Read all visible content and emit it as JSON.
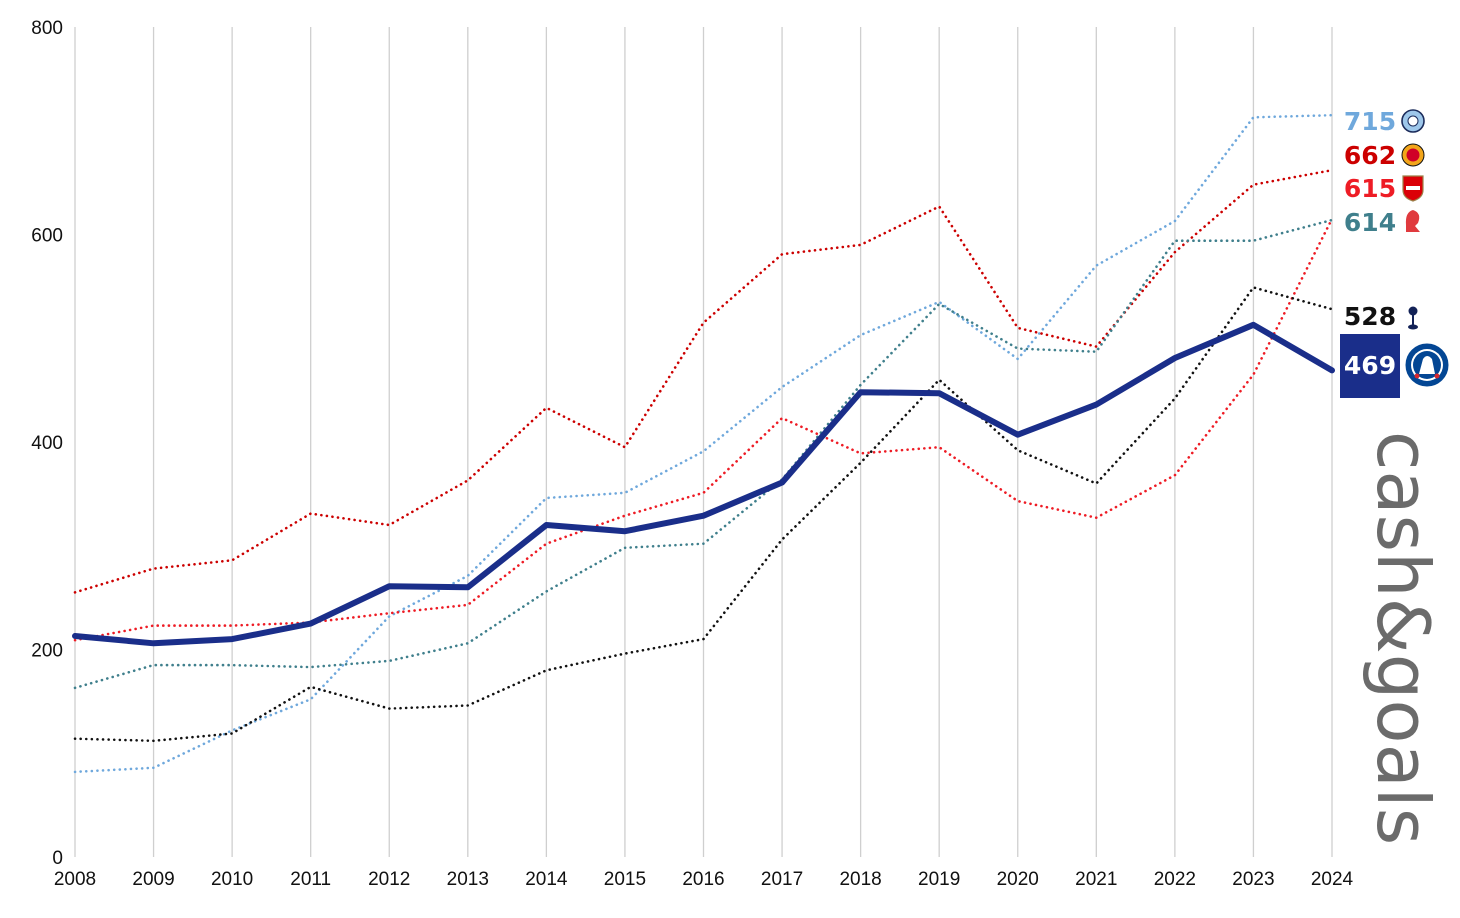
{
  "chart_data": {
    "type": "line",
    "x": [
      2008,
      2009,
      2010,
      2011,
      2012,
      2013,
      2014,
      2015,
      2016,
      2017,
      2018,
      2019,
      2020,
      2021,
      2022,
      2023,
      2024
    ],
    "x_labels": [
      "2008",
      "2009",
      "2010",
      "2011",
      "2012",
      "2013",
      "2014",
      "2015",
      "2016",
      "2017",
      "2018",
      "2019",
      "2020",
      "2021",
      "2022",
      "2023",
      "2024"
    ],
    "ylim": [
      0,
      800
    ],
    "y_ticks": [
      0,
      200,
      400,
      600,
      800
    ],
    "y_tick_labels": [
      "0",
      "200",
      "400",
      "600",
      "800"
    ],
    "grid": "vertical",
    "title": "",
    "xlabel": "",
    "ylabel": "",
    "series": [
      {
        "color": "#6fa8dc",
        "style": "dotted",
        "end_label": "715",
        "icon": "manchester-city-crest-icon",
        "values": [
          82,
          86,
          122,
          152,
          232,
          271,
          346,
          351,
          391,
          453,
          503,
          535,
          480,
          570,
          613,
          713,
          715
        ]
      },
      {
        "color": "#cc0000",
        "style": "dotted",
        "end_label": "662",
        "icon": "manchester-united-crest-icon",
        "values": [
          255,
          278,
          286,
          331,
          320,
          363,
          433,
          395,
          515,
          581,
          590,
          627,
          510,
          492,
          583,
          648,
          662
        ]
      },
      {
        "color": "#ee1c25",
        "style": "dotted",
        "end_label": "615",
        "icon": "arsenal-crest-icon",
        "values": [
          209,
          223,
          223,
          226,
          235,
          243,
          302,
          329,
          351,
          423,
          389,
          395,
          343,
          327,
          368,
          465,
          615
        ]
      },
      {
        "color": "#3f7f8c",
        "style": "dotted",
        "end_label": "614",
        "icon": "liverpool-crest-icon",
        "values": [
          163,
          185,
          185,
          183,
          189,
          206,
          256,
          298,
          302,
          364,
          455,
          533,
          490,
          487,
          594,
          594,
          614
        ]
      },
      {
        "color": "#111111",
        "style": "dotted",
        "end_label": "528",
        "icon": "tottenham-cockerel-icon",
        "values": [
          114,
          112,
          119,
          164,
          143,
          146,
          180,
          196,
          210,
          306,
          380,
          460,
          392,
          360,
          442,
          549,
          528
        ]
      },
      {
        "color": "#1a2e8a",
        "style": "solid",
        "end_label": "469",
        "icon": "chelsea-crest-icon",
        "highlight": true,
        "values": [
          213,
          206,
          210,
          225,
          261,
          260,
          320,
          314,
          329,
          361,
          448,
          447,
          407,
          436,
          481,
          513,
          469
        ]
      }
    ]
  },
  "watermark": "cash&goals"
}
